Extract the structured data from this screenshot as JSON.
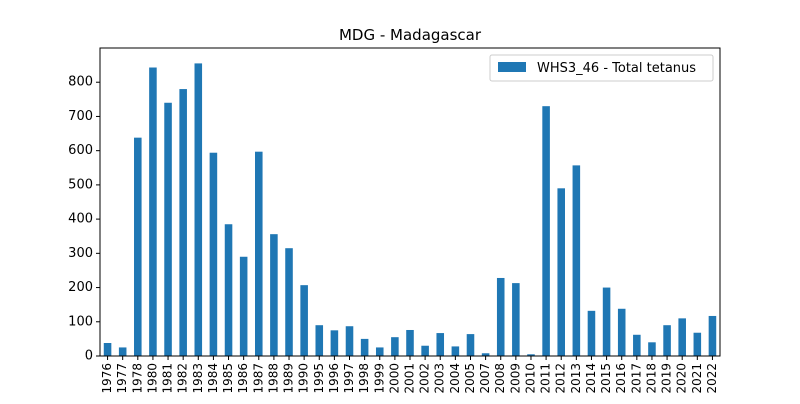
{
  "chart_data": {
    "type": "bar",
    "title": "MDG - Madagascar",
    "xlabel": "",
    "ylabel": "",
    "ylim": [
      0,
      900
    ],
    "yticks": [
      0,
      100,
      200,
      300,
      400,
      500,
      600,
      700,
      800
    ],
    "grid": false,
    "legend_position": "top-right",
    "categories": [
      "1976",
      "1977",
      "1978",
      "1980",
      "1981",
      "1982",
      "1983",
      "1984",
      "1985",
      "1986",
      "1987",
      "1988",
      "1989",
      "1990",
      "1995",
      "1996",
      "1997",
      "1998",
      "1999",
      "2000",
      "2001",
      "2002",
      "2003",
      "2004",
      "2005",
      "2007",
      "2008",
      "2009",
      "2010",
      "2011",
      "2012",
      "2013",
      "2014",
      "2015",
      "2016",
      "2017",
      "2018",
      "2019",
      "2020",
      "2021",
      "2022"
    ],
    "series": [
      {
        "name": "WHS3_46 - Total tetanus",
        "color": "#1f77b4",
        "values": [
          38,
          25,
          638,
          843,
          740,
          780,
          855,
          594,
          385,
          290,
          597,
          356,
          315,
          207,
          90,
          75,
          87,
          50,
          25,
          55,
          76,
          30,
          67,
          28,
          64,
          8,
          228,
          213,
          5,
          730,
          490,
          557,
          132,
          200,
          138,
          62,
          40,
          90,
          110,
          68,
          117
        ]
      }
    ]
  }
}
